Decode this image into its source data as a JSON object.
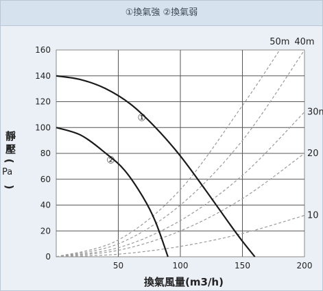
{
  "chart_data": {
    "type": "line",
    "title": "①換氣強 ②換氣弱",
    "xlabel": "換氣風量(m3/h)",
    "ylabel": [
      "靜",
      "壓",
      "(",
      "Pa",
      ")"
    ],
    "xlim": [
      0,
      200
    ],
    "ylim": [
      0,
      160
    ],
    "x_ticks": [
      "50",
      "100",
      "150",
      "200"
    ],
    "y_ticks": [
      "0",
      "20",
      "40",
      "60",
      "80",
      "100",
      "120",
      "140",
      "160"
    ],
    "grid": true,
    "series": [
      {
        "name": "①",
        "style": "solid",
        "x": [
          0,
          20,
          40,
          60,
          80,
          100,
          120,
          140,
          150,
          160
        ],
        "y": [
          140,
          137,
          130,
          118,
          100,
          78,
          52,
          25,
          12,
          0
        ]
      },
      {
        "name": "②",
        "style": "solid",
        "x": [
          0,
          20,
          40,
          55,
          70,
          80,
          90
        ],
        "y": [
          100,
          94,
          80,
          67,
          46,
          27,
          0
        ]
      }
    ],
    "duct_curves": {
      "style": "dashed",
      "color": "#999999",
      "lines": [
        {
          "label": "50m",
          "x": [
            0,
            50,
            100,
            150,
            180
          ],
          "y": [
            0,
            13,
            52,
            117,
            160
          ]
        },
        {
          "label": "40m",
          "x": [
            0,
            50,
            100,
            150,
            200
          ],
          "y": [
            0,
            10,
            40,
            90,
            160
          ]
        },
        {
          "label": "30m",
          "x": [
            0,
            50,
            100,
            150,
            200
          ],
          "y": [
            0,
            7,
            28,
            63,
            112
          ]
        },
        {
          "label": "20",
          "x": [
            0,
            50,
            100,
            150,
            200
          ],
          "y": [
            0,
            5,
            20,
            45,
            80
          ]
        },
        {
          "label": "10",
          "x": [
            0,
            50,
            100,
            150,
            200
          ],
          "y": [
            0,
            2,
            8,
            18,
            32
          ]
        }
      ]
    },
    "line_color": "#1a1a1a"
  }
}
